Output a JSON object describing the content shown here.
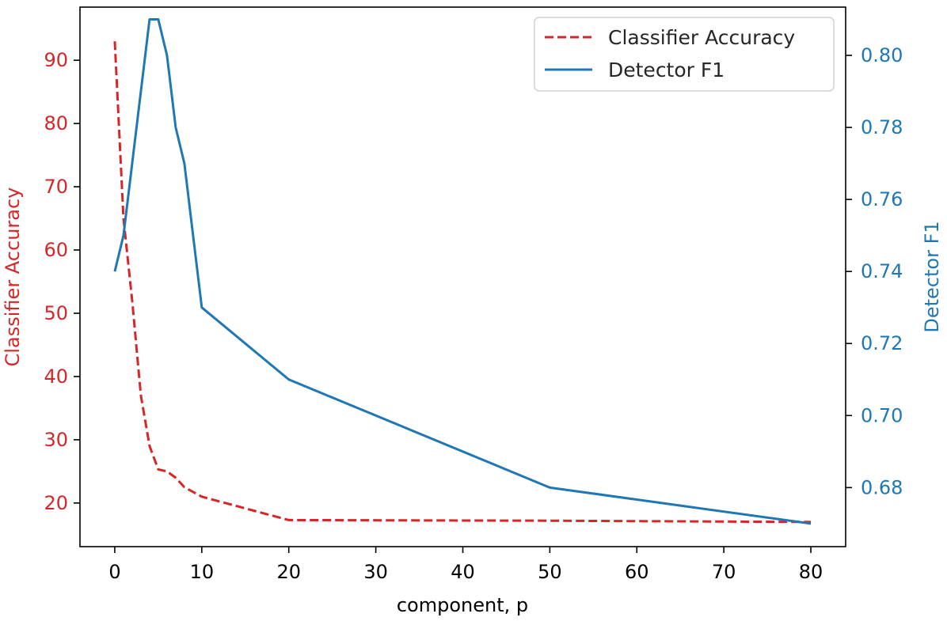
{
  "chart_data": {
    "type": "line",
    "xlabel": "component, p",
    "ylabel_left": "Classifier Accuracy",
    "ylabel_right": "Detector F1",
    "xlim": [
      -4,
      84
    ],
    "x_ticks": [
      0,
      10,
      20,
      30,
      40,
      50,
      60,
      70,
      80
    ],
    "ylim_left": [
      13.1,
      98.4
    ],
    "y_ticks_left": [
      20,
      30,
      40,
      50,
      60,
      70,
      80,
      90
    ],
    "ylim_right": [
      0.6636,
      0.8134
    ],
    "y_ticks_right": [
      0.68,
      0.7,
      0.72,
      0.74,
      0.76,
      0.78,
      0.8
    ],
    "legend_position": "top-right",
    "grid": false,
    "series": [
      {
        "name": "Classifier Accuracy",
        "axis": "left",
        "style": "dashed",
        "color": "#d62728",
        "x": [
          0,
          1,
          2,
          3,
          4,
          5,
          6,
          7,
          8,
          10,
          20,
          50,
          80
        ],
        "y": [
          93,
          65,
          52,
          37,
          29,
          25.3,
          25,
          24,
          22.5,
          21,
          17.3,
          17.2,
          17
        ]
      },
      {
        "name": "Detector F1",
        "axis": "right",
        "style": "solid",
        "color": "#1f77b4",
        "x": [
          0,
          1,
          4,
          5,
          6,
          7,
          8,
          10,
          20,
          50,
          80
        ],
        "y": [
          0.74,
          0.75,
          0.81,
          0.81,
          0.8,
          0.78,
          0.77,
          0.73,
          0.71,
          0.68,
          0.67
        ]
      }
    ]
  }
}
